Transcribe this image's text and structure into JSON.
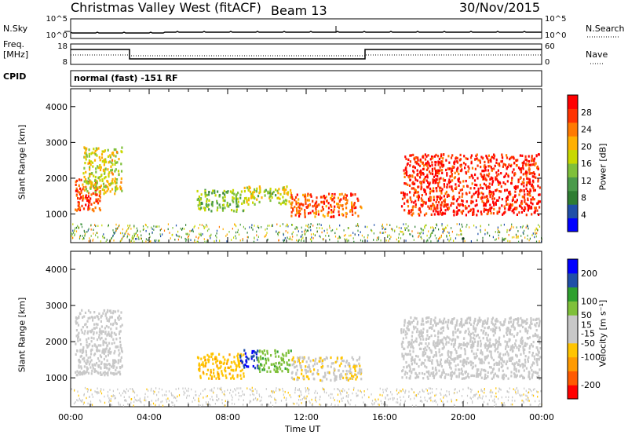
{
  "header": {
    "radar": "Christmas Valley West (fitACF)",
    "beam": "Beam 13",
    "date": "30/Nov/2015"
  },
  "top_panels": {
    "nsky_label": "N.Sky",
    "nsky_ticks": [
      "10^5",
      "10^0"
    ],
    "nsearch_label": "N.Search",
    "nsearch_ticks": [
      "10^5",
      "10^0"
    ],
    "freq_label": "Freq.",
    "freq_unit": "[MHz]",
    "freq_ticks": [
      "18",
      "8"
    ],
    "nave_label": "Nave",
    "nave_ticks": [
      "60",
      "0"
    ],
    "cpid_label": "CPID",
    "cpid_text": "normal (fast) -151 RF"
  },
  "colors": {
    "power_scale": [
      "#0000ff",
      "#1f4fa8",
      "#2e7d32",
      "#4a9a4a",
      "#7fc03a",
      "#c8d800",
      "#ffb000",
      "#ff7a00",
      "#ff3300",
      "#ff0000"
    ],
    "velocity_scale": [
      "#ff0000",
      "#ff5a00",
      "#ff9a00",
      "#ffc400",
      "#c8c8c8",
      "#c8c8c8",
      "#7fc03a",
      "#2ea02e",
      "#1f4fa8",
      "#0000ff"
    ]
  },
  "chart_data": [
    {
      "type": "heatmap",
      "name": "power",
      "ylabel": "Slant Range [km]",
      "yticks": [
        "1000",
        "2000",
        "3000",
        "4000"
      ],
      "ylim": [
        200,
        4500
      ],
      "xlim": [
        0,
        24
      ],
      "colorbar_label": "Power [dB]",
      "colorbar_ticks": [
        "28",
        "24",
        "20",
        "16",
        "12",
        "8",
        "4"
      ],
      "colorbar_range": [
        0,
        32
      ],
      "echo_regions": [
        {
          "t": [
            0.2,
            1.5
          ],
          "r": [
            1100,
            2000
          ],
          "level": 27
        },
        {
          "t": [
            0.6,
            2.6
          ],
          "r": [
            1600,
            2900
          ],
          "level": 18
        },
        {
          "t": [
            6.4,
            8.8
          ],
          "r": [
            1100,
            1700
          ],
          "level": 14
        },
        {
          "t": [
            8.8,
            11.2
          ],
          "r": [
            1300,
            1800
          ],
          "level": 17
        },
        {
          "t": [
            11.2,
            14.8
          ],
          "r": [
            950,
            1600
          ],
          "level": 26
        },
        {
          "t": [
            16.8,
            23.9
          ],
          "r": [
            1000,
            2700
          ],
          "level": 29
        }
      ]
    },
    {
      "type": "heatmap",
      "name": "velocity",
      "ylabel": "Slant Range [km]",
      "xlabel": "Time UT",
      "yticks": [
        "1000",
        "2000",
        "3000",
        "4000"
      ],
      "xticks": [
        "00:00",
        "04:00",
        "08:00",
        "12:00",
        "16:00",
        "20:00",
        "00:00"
      ],
      "ylim": [
        200,
        4500
      ],
      "xlim": [
        0,
        24
      ],
      "colorbar_label": "Velocity [m s⁻¹]",
      "colorbar_ticks": [
        "200",
        "100",
        "50",
        "15",
        "-15",
        "-50",
        "-100",
        "-200"
      ],
      "colorbar_range": [
        -250,
        250
      ],
      "echo_regions": [
        {
          "t": [
            0.2,
            2.6
          ],
          "r": [
            1100,
            2900
          ],
          "level": 0
        },
        {
          "t": [
            6.4,
            8.8
          ],
          "r": [
            1000,
            1700
          ],
          "level": -80
        },
        {
          "t": [
            8.6,
            9.5
          ],
          "r": [
            1300,
            1800
          ],
          "level": 200
        },
        {
          "t": [
            9.5,
            11.2
          ],
          "r": [
            1200,
            1800
          ],
          "level": 80
        },
        {
          "t": [
            11.2,
            14.8
          ],
          "r": [
            950,
            1600
          ],
          "level": -40
        },
        {
          "t": [
            16.8,
            23.9
          ],
          "r": [
            1000,
            2700
          ],
          "level": 0
        }
      ]
    }
  ]
}
